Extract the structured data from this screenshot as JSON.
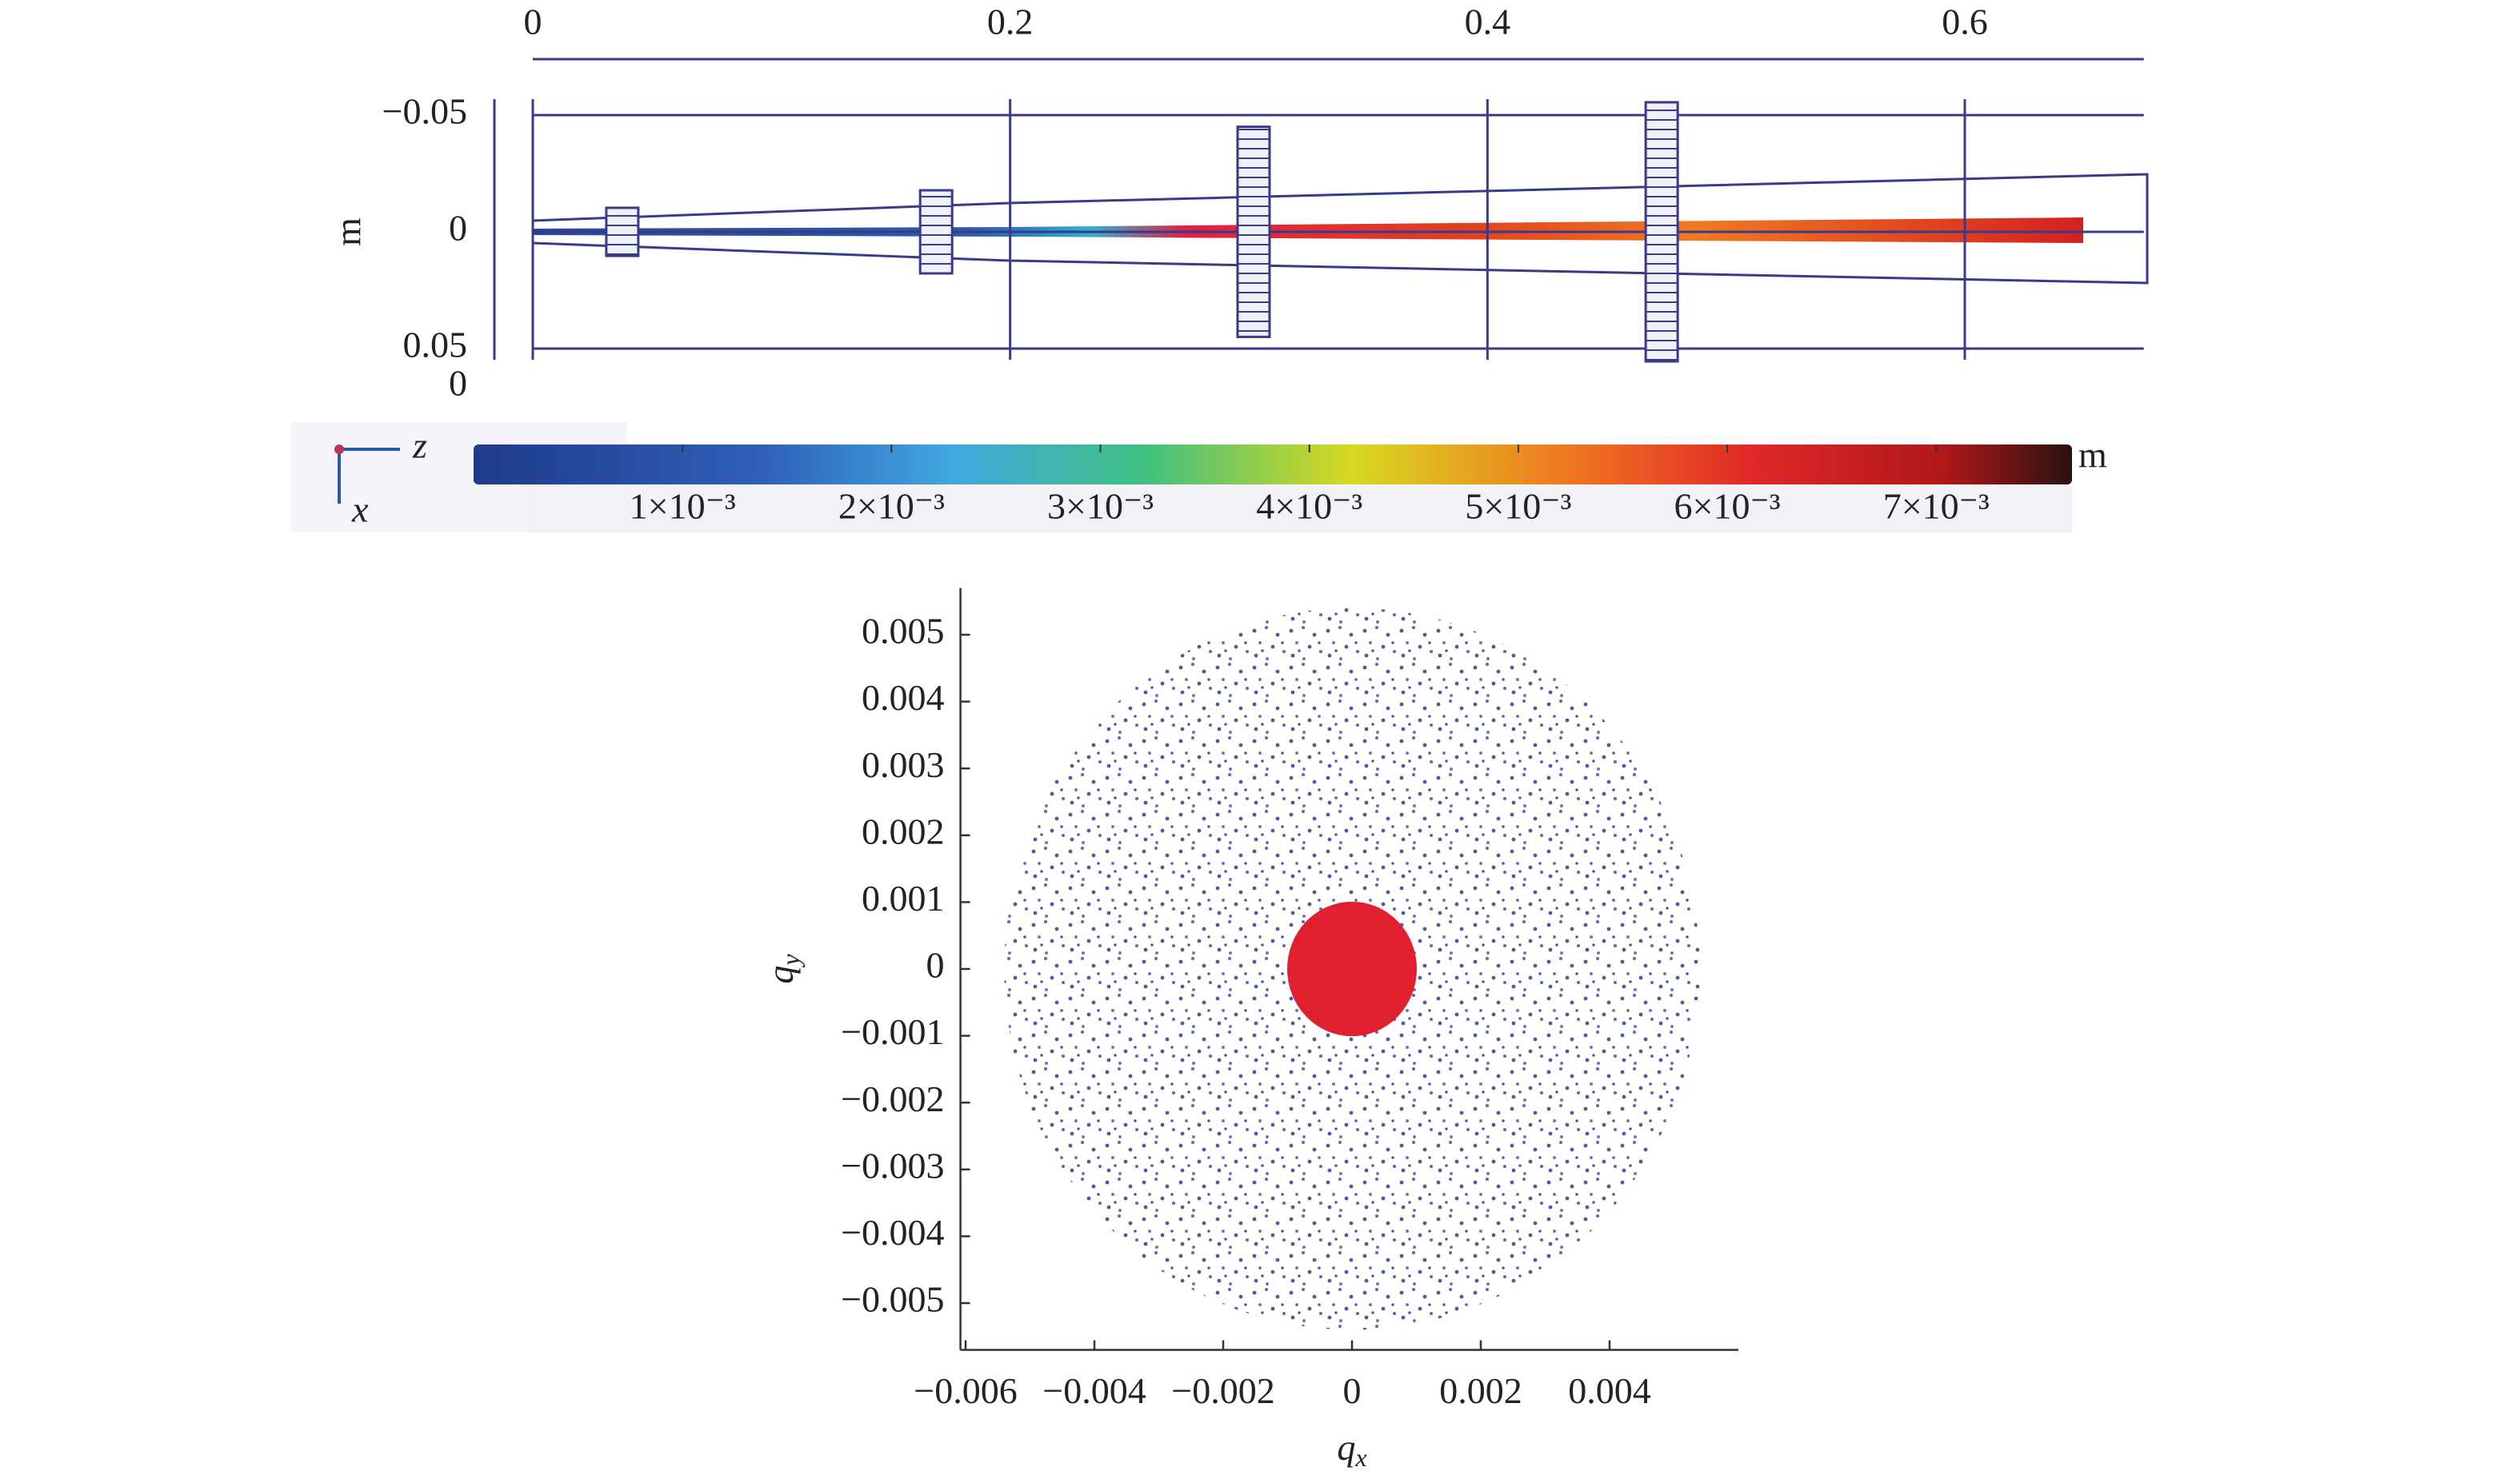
{
  "chart_data": [
    {
      "type": "raytrace",
      "xlim": [
        0,
        0.675
      ],
      "xticks": [
        0,
        0.2,
        0.4,
        0.6
      ],
      "ylim": [
        -0.05,
        0.05
      ],
      "y_inverted": true,
      "yticks": [
        {
          "value": -0.05,
          "label": "−0.05"
        },
        0,
        0.05
      ],
      "ylabel": "m",
      "annotations": [
        "0"
      ],
      "grid": true,
      "axis_labels": [
        "z",
        "x"
      ],
      "lenses": [
        {
          "z": 0.0375,
          "half_height": 0.0103
        },
        {
          "z": 0.169,
          "half_height": 0.0178
        },
        {
          "z": 0.302,
          "half_height": 0.045
        },
        {
          "z": 0.473,
          "half_height": 0.0555
        }
      ],
      "color": "#3a3a8a",
      "colorbar": {
        "label": "m",
        "lim": [
          0,
          0.00765
        ],
        "ticks": [
          {
            "value": 0.001,
            "label": "1×10⁻³"
          },
          {
            "value": 0.002,
            "label": "2×10⁻³"
          },
          {
            "value": 0.003,
            "label": "3×10⁻³"
          },
          {
            "value": 0.004,
            "label": "4×10⁻³"
          },
          {
            "value": 0.005,
            "label": "5×10⁻³"
          },
          {
            "value": 0.006,
            "label": "6×10⁻³"
          },
          {
            "value": 0.007,
            "label": "7×10⁻³"
          }
        ]
      }
    },
    {
      "type": "scatter",
      "xlabel": {
        "symbol": "q",
        "subscript": "x"
      },
      "ylabel": {
        "symbol": "q",
        "subscript": "y"
      },
      "xlim": [
        -0.00608,
        0.006
      ],
      "ylim": [
        -0.0057,
        0.0057
      ],
      "xticks": [
        {
          "value": -0.006,
          "label": "−0.006"
        },
        {
          "value": -0.004,
          "label": "−0.004"
        },
        {
          "value": -0.002,
          "label": "−0.002"
        },
        0,
        0.002,
        0.004
      ],
      "yticks": [
        0.005,
        0.004,
        0.003,
        0.002,
        0.001,
        0,
        {
          "value": -0.001,
          "label": "−0.001"
        },
        {
          "value": -0.002,
          "label": "−0.002"
        },
        {
          "value": -0.003,
          "label": "−0.003"
        },
        {
          "value": -0.004,
          "label": "−0.004"
        },
        {
          "value": -0.005,
          "label": "−0.005"
        }
      ],
      "regions": [
        {
          "radius": 0.0054,
          "color": "#4a5aa8"
        },
        {
          "radius": 0.001,
          "color": "#e0202e"
        }
      ]
    }
  ]
}
